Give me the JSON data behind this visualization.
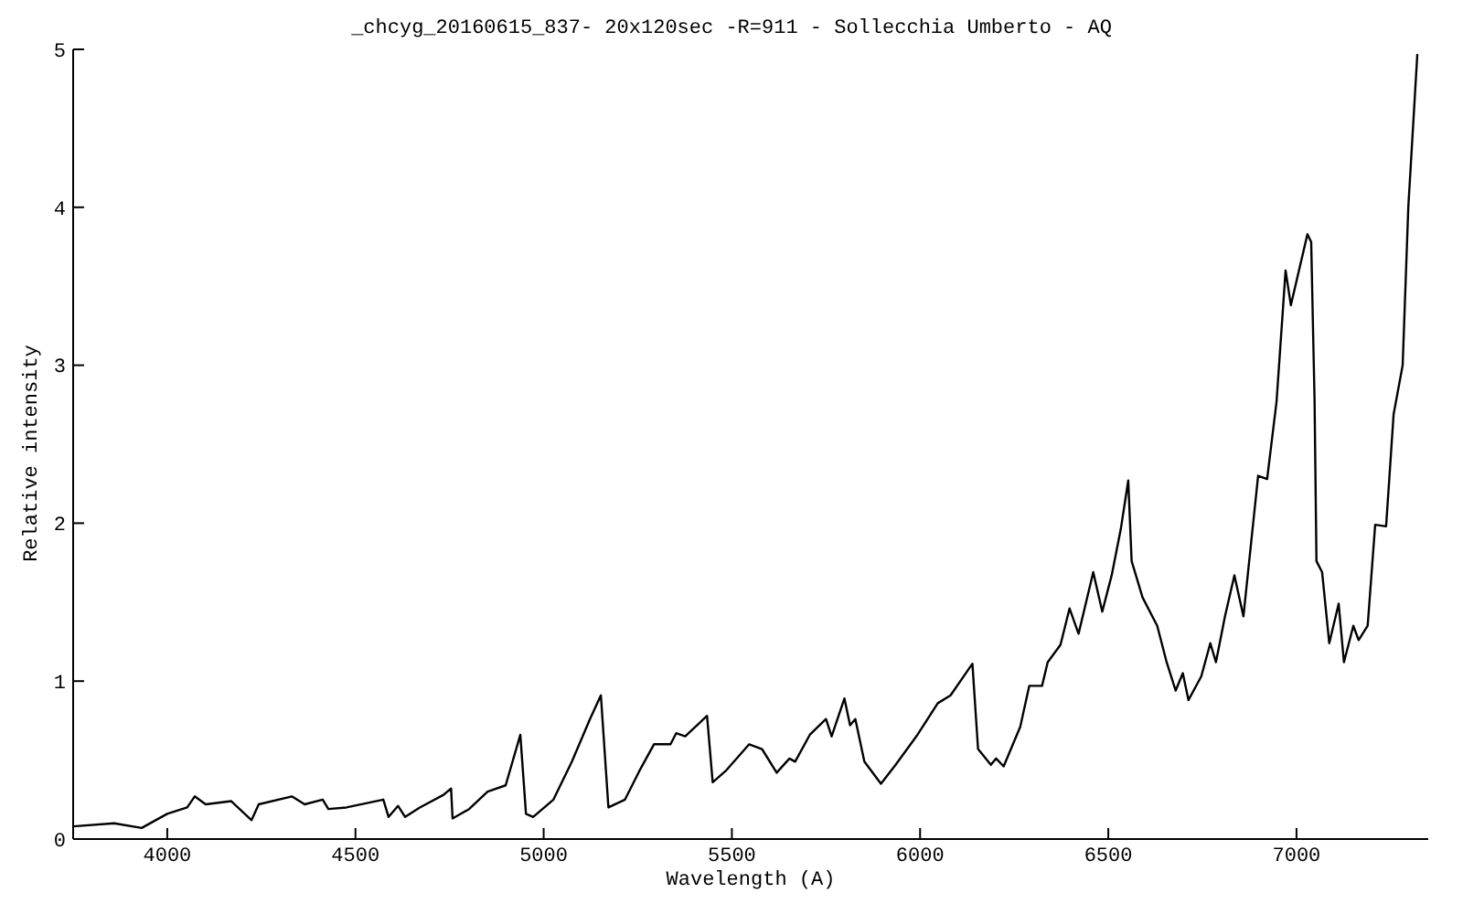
{
  "chart_data": {
    "type": "line",
    "title": "_chcyg_20160615_837- 20x120sec -R=911 - Sollecchia Umberto - AQ",
    "xlabel": "Wavelength (A)",
    "ylabel": "Relative intensity",
    "x": [
      3750,
      3859,
      3932,
      4000,
      4053,
      4073,
      4102,
      4170,
      4224,
      4243,
      4331,
      4365,
      4413,
      4428,
      4476,
      4574,
      4588,
      4613,
      4632,
      4671,
      4734,
      4754,
      4758,
      4802,
      4851,
      4899,
      4938,
      4953,
      4972,
      5026,
      5075,
      5123,
      5152,
      5172,
      5216,
      5254,
      5293,
      5337,
      5352,
      5376,
      5434,
      5449,
      5483,
      5546,
      5580,
      5619,
      5653,
      5668,
      5707,
      5750,
      5765,
      5799,
      5814,
      5828,
      5852,
      5896,
      5935,
      5993,
      6047,
      6081,
      6139,
      6154,
      6188,
      6202,
      6222,
      6266,
      6290,
      6324,
      6339,
      6373,
      6397,
      6421,
      6446,
      6460,
      6484,
      6509,
      6533,
      6553,
      6562,
      6591,
      6630,
      6655,
      6679,
      6698,
      6713,
      6747,
      6771,
      6786,
      6810,
      6835,
      6859,
      6898,
      6922,
      6947,
      6971,
      6985,
      7029,
      7039,
      7048,
      7053,
      7068,
      7087,
      7112,
      7126,
      7151,
      7165,
      7189,
      7209,
      7238,
      7258,
      7282,
      7297,
      7321
    ],
    "series": [
      {
        "color": "#000000",
        "values": [
          0.08,
          0.1,
          0.07,
          0.16,
          0.2,
          0.27,
          0.22,
          0.24,
          0.12,
          0.22,
          0.27,
          0.22,
          0.25,
          0.19,
          0.2,
          0.25,
          0.14,
          0.21,
          0.14,
          0.2,
          0.28,
          0.32,
          0.13,
          0.19,
          0.3,
          0.34,
          0.66,
          0.16,
          0.14,
          0.25,
          0.49,
          0.76,
          0.91,
          0.2,
          0.25,
          0.43,
          0.6,
          0.6,
          0.67,
          0.65,
          0.78,
          0.36,
          0.43,
          0.6,
          0.57,
          0.42,
          0.51,
          0.49,
          0.66,
          0.76,
          0.65,
          0.89,
          0.72,
          0.76,
          0.49,
          0.35,
          0.47,
          0.66,
          0.86,
          0.91,
          1.11,
          0.57,
          0.47,
          0.51,
          0.46,
          0.71,
          0.97,
          0.97,
          1.12,
          1.23,
          1.46,
          1.3,
          1.55,
          1.69,
          1.44,
          1.67,
          1.96,
          2.27,
          1.76,
          1.53,
          1.35,
          1.12,
          0.94,
          1.05,
          0.88,
          1.03,
          1.24,
          1.12,
          1.41,
          1.67,
          1.41,
          2.3,
          2.28,
          2.77,
          3.6,
          3.38,
          3.83,
          3.78,
          2.77,
          1.76,
          1.69,
          1.24,
          1.49,
          1.12,
          1.35,
          1.26,
          1.35,
          1.99,
          1.98,
          2.69,
          3.0,
          4.0,
          4.97
        ]
      }
    ],
    "xlim": [
      3750,
      7350
    ],
    "xticks": [
      4000,
      4500,
      5000,
      5500,
      6000,
      6500,
      7000
    ],
    "ylim": [
      0,
      5
    ],
    "yticks": [
      0,
      1,
      2,
      3,
      4,
      5
    ],
    "grid": false,
    "legend": false,
    "marker": "none",
    "line_style": "solid"
  }
}
